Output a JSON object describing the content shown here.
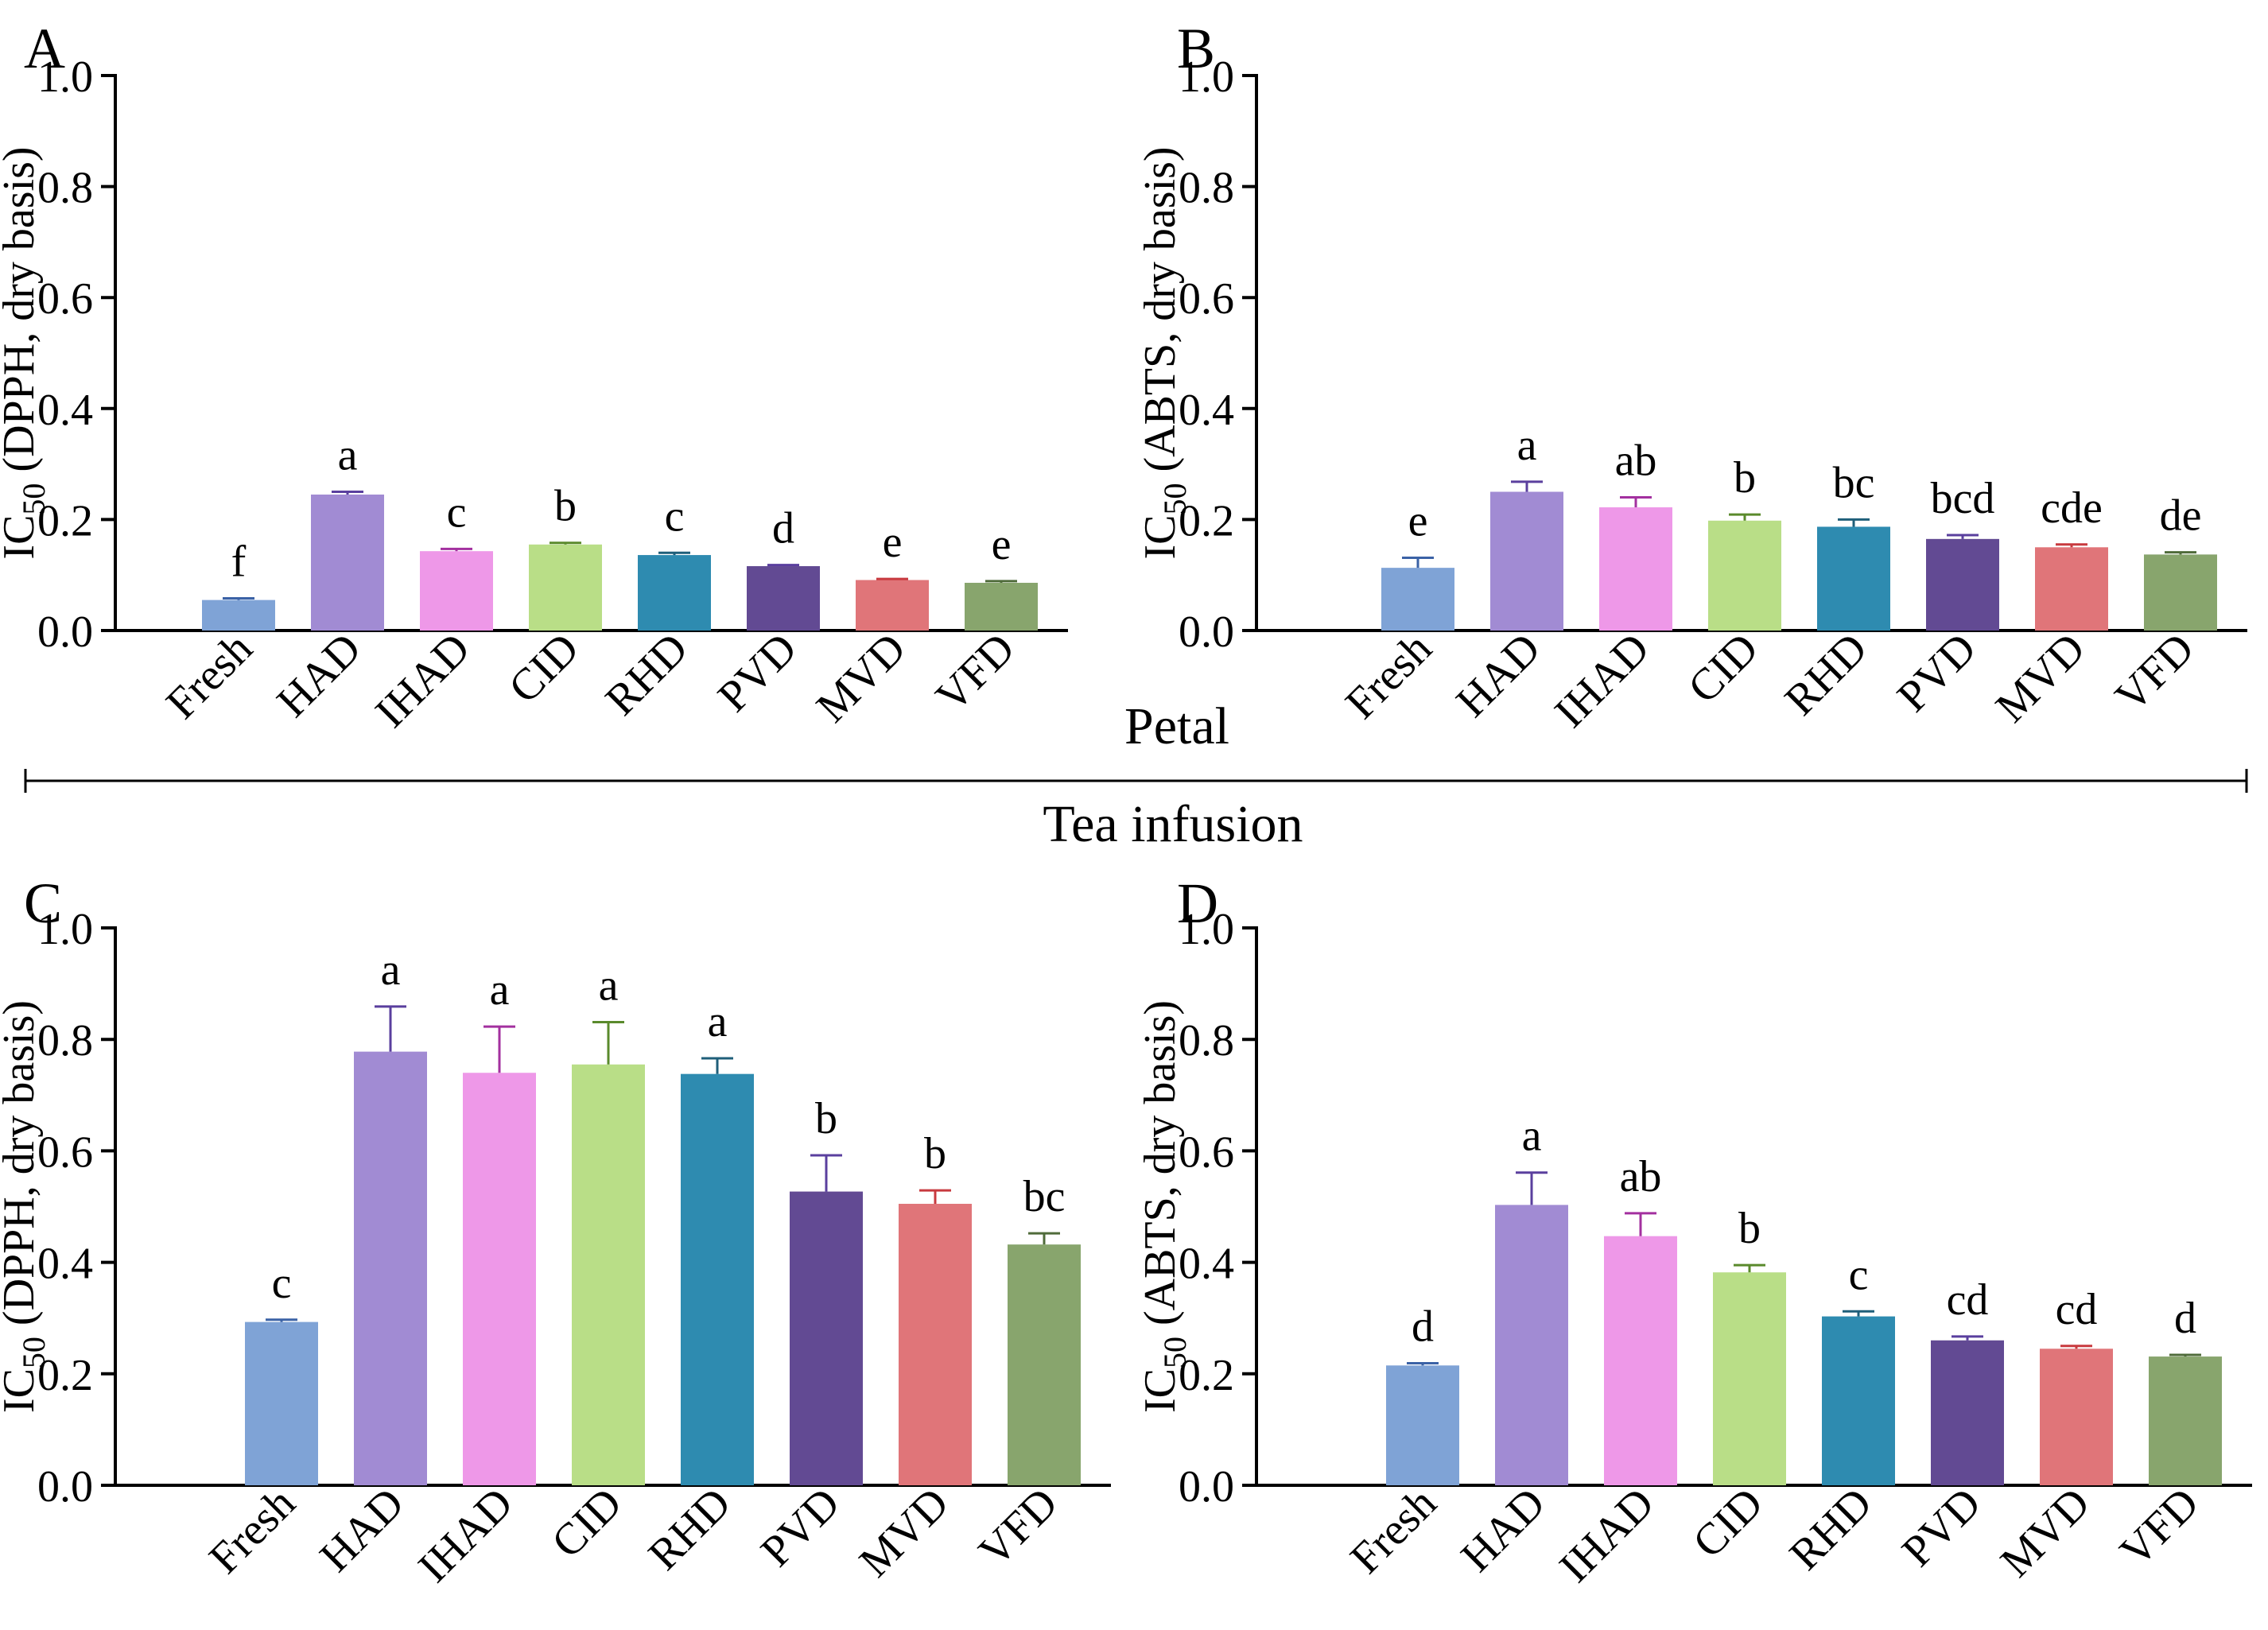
{
  "figure": {
    "section_label_petal": "Petal",
    "section_label_tea": "Tea infusion"
  },
  "chart_data": [
    {
      "panel": "A",
      "type": "bar",
      "ylabel_prefix": "IC",
      "ylabel_sub": "50",
      "ylabel_rest": " (DPPH, dry basis)",
      "ylim": [
        0,
        1.0
      ],
      "yticks": [
        "0.0",
        "0.2",
        "0.4",
        "0.6",
        "0.8",
        "1.0"
      ],
      "categories": [
        "Fresh",
        "HAD",
        "IHAD",
        "CID",
        "RHD",
        "PVD",
        "MVD",
        "VFD"
      ],
      "values": [
        0.055,
        0.245,
        0.143,
        0.155,
        0.136,
        0.116,
        0.091,
        0.086
      ],
      "errors": [
        0.003,
        0.005,
        0.004,
        0.003,
        0.004,
        0.002,
        0.002,
        0.003
      ],
      "letters": [
        "f",
        "a",
        "c",
        "b",
        "c",
        "d",
        "e",
        "e"
      ],
      "colors": [
        "#7fa3d6",
        "#a18bd3",
        "#ee98e8",
        "#b9de87",
        "#2e8bb0",
        "#624a93",
        "#e07579",
        "#88a56d"
      ]
    },
    {
      "panel": "B",
      "type": "bar",
      "ylabel_prefix": "IC",
      "ylabel_sub": "50",
      "ylabel_rest": " (ABTS, dry basis)",
      "ylim": [
        0,
        1.0
      ],
      "yticks": [
        "0.0",
        "0.2",
        "0.4",
        "0.6",
        "0.8",
        "1.0"
      ],
      "categories": [
        "Fresh",
        "HAD",
        "IHAD",
        "CID",
        "RHD",
        "PVD",
        "MVD",
        "VFD"
      ],
      "values": [
        0.113,
        0.25,
        0.222,
        0.198,
        0.187,
        0.165,
        0.15,
        0.137
      ],
      "errors": [
        0.018,
        0.018,
        0.018,
        0.011,
        0.013,
        0.007,
        0.005,
        0.004
      ],
      "letters": [
        "e",
        "a",
        "ab",
        "b",
        "bc",
        "bcd",
        "cde",
        "de"
      ],
      "colors": [
        "#7fa3d6",
        "#a18bd3",
        "#ee98e8",
        "#b9de87",
        "#2e8bb0",
        "#624a93",
        "#e07579",
        "#88a56d"
      ]
    },
    {
      "panel": "C",
      "type": "bar",
      "ylabel_prefix": "IC",
      "ylabel_sub": "50",
      "ylabel_rest": " (DPPH, dry basis)",
      "ylim": [
        0,
        1.0
      ],
      "yticks": [
        "0.0",
        "0.2",
        "0.4",
        "0.6",
        "0.8",
        "1.0"
      ],
      "categories": [
        "Fresh",
        "HAD",
        "IHAD",
        "CID",
        "RHD",
        "PVD",
        "MVD",
        "VFD"
      ],
      "values": [
        0.293,
        0.778,
        0.74,
        0.755,
        0.738,
        0.527,
        0.505,
        0.432
      ],
      "errors": [
        0.004,
        0.081,
        0.083,
        0.076,
        0.028,
        0.065,
        0.024,
        0.02
      ],
      "letters": [
        "c",
        "a",
        "a",
        "a",
        "a",
        "b",
        "b",
        "bc"
      ],
      "colors": [
        "#7fa3d6",
        "#a18bd3",
        "#ee98e8",
        "#b9de87",
        "#2e8bb0",
        "#624a93",
        "#e07579",
        "#88a56d"
      ]
    },
    {
      "panel": "D",
      "type": "bar",
      "ylabel_prefix": "IC",
      "ylabel_sub": "50",
      "ylabel_rest": " (ABTS, dry basis)",
      "ylim": [
        0,
        1.0
      ],
      "yticks": [
        "0.0",
        "0.2",
        "0.4",
        "0.6",
        "0.8",
        "1.0"
      ],
      "categories": [
        "Fresh",
        "HAD",
        "IHAD",
        "CID",
        "RHD",
        "PVD",
        "MVD",
        "VFD"
      ],
      "values": [
        0.215,
        0.503,
        0.447,
        0.382,
        0.303,
        0.26,
        0.245,
        0.231
      ],
      "errors": [
        0.004,
        0.058,
        0.041,
        0.013,
        0.009,
        0.007,
        0.005,
        0.003
      ],
      "letters": [
        "d",
        "a",
        "ab",
        "b",
        "c",
        "cd",
        "cd",
        "d"
      ],
      "colors": [
        "#7fa3d6",
        "#a18bd3",
        "#ee98e8",
        "#b9de87",
        "#2e8bb0",
        "#624a93",
        "#e07579",
        "#88a56d"
      ]
    }
  ]
}
